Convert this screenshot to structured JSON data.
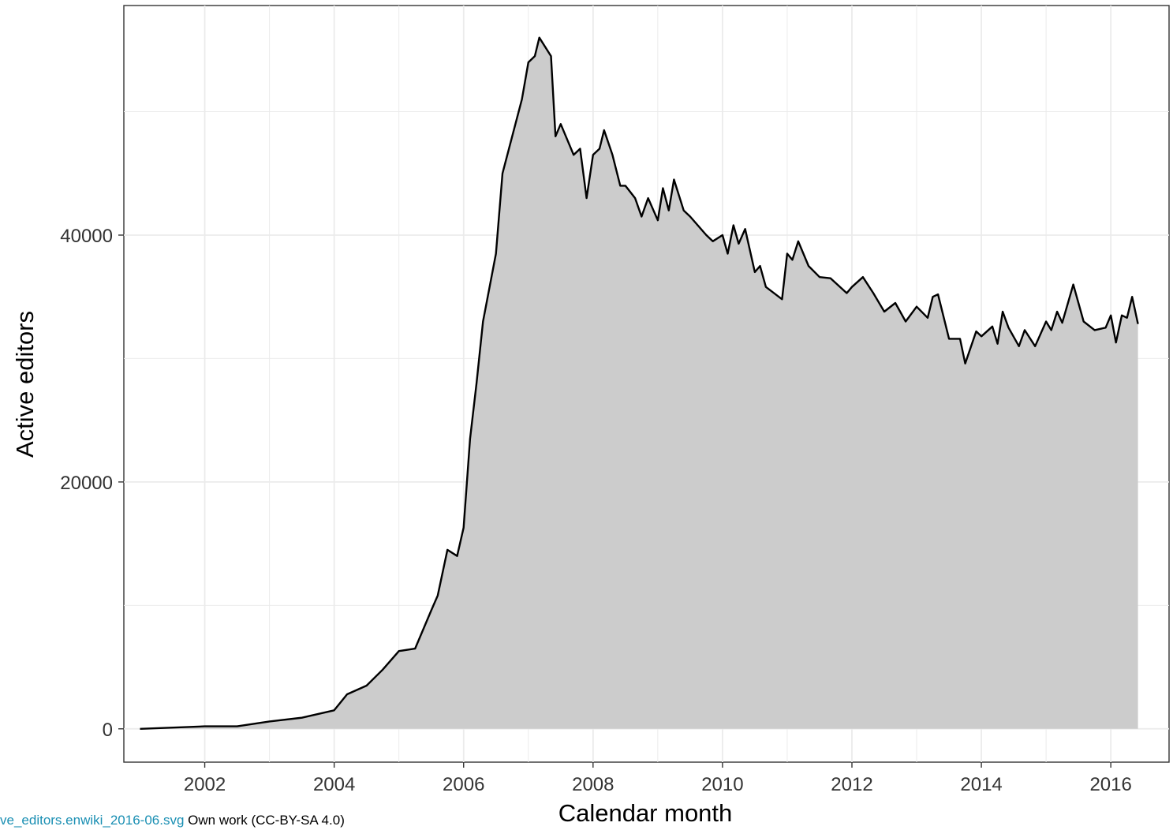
{
  "chart_data": {
    "type": "area",
    "xlabel": "Calendar month",
    "ylabel": "Active editors",
    "xlim": [
      2000.75,
      2016.9
    ],
    "ylim": [
      -2700,
      58600
    ],
    "x_ticks": [
      2002,
      2004,
      2006,
      2008,
      2010,
      2012,
      2014,
      2016
    ],
    "x_tick_labels": [
      "2002",
      "2004",
      "2006",
      "2008",
      "2010",
      "2012",
      "2014",
      "2016"
    ],
    "y_ticks": [
      0,
      20000,
      40000
    ],
    "y_tick_labels": [
      "0",
      "20000",
      "40000"
    ],
    "y_minor_ticks": [
      10000,
      30000,
      50000
    ],
    "grid": true,
    "legend": "none",
    "colors": {
      "fill": "#cccccc",
      "line": "#000000",
      "grid": "#ebebeb",
      "border": "#333333"
    },
    "series": [
      {
        "x": [
          2001.0,
          2002.0,
          2002.5,
          2003.0,
          2003.5,
          2004.0,
          2004.2,
          2004.5,
          2004.75,
          2005.0,
          2005.25,
          2005.5,
          2005.6,
          2005.75,
          2005.9,
          2006.0,
          2006.1,
          2006.2,
          2006.3,
          2006.5,
          2006.6,
          2006.75,
          2006.9,
          2007.0,
          2007.1,
          2007.17,
          2007.35,
          2007.42,
          2007.5,
          2007.7,
          2007.8,
          2007.9,
          2008.0,
          2008.1,
          2008.17,
          2008.3,
          2008.42,
          2008.5,
          2008.65,
          2008.75,
          2008.85,
          2009.0,
          2009.08,
          2009.17,
          2009.25,
          2009.4,
          2009.5,
          2009.75,
          2009.85,
          2010.0,
          2010.08,
          2010.17,
          2010.25,
          2010.35,
          2010.5,
          2010.58,
          2010.67,
          2010.92,
          2011.0,
          2011.08,
          2011.17,
          2011.33,
          2011.5,
          2011.67,
          2011.92,
          2012.0,
          2012.17,
          2012.33,
          2012.5,
          2012.67,
          2012.83,
          2013.0,
          2013.17,
          2013.25,
          2013.33,
          2013.5,
          2013.67,
          2013.75,
          2013.92,
          2014.0,
          2014.17,
          2014.25,
          2014.33,
          2014.42,
          2014.58,
          2014.67,
          2014.83,
          2015.0,
          2015.08,
          2015.17,
          2015.25,
          2015.42,
          2015.58,
          2015.75,
          2015.92,
          2016.0,
          2016.08,
          2016.17,
          2016.25,
          2016.33,
          2016.42
        ],
        "values": [
          0,
          200,
          200,
          600,
          900,
          1500,
          2800,
          3500,
          4800,
          6300,
          6500,
          9600,
          10800,
          14500,
          14000,
          16300,
          23500,
          28000,
          33000,
          38500,
          45000,
          48000,
          51000,
          54000,
          54500,
          56000,
          54500,
          48000,
          49000,
          46500,
          47000,
          43000,
          46500,
          47000,
          48500,
          46500,
          44000,
          44000,
          43000,
          41500,
          43000,
          41200,
          43800,
          42000,
          44500,
          42000,
          41500,
          40000,
          39500,
          40000,
          38500,
          40800,
          39300,
          40500,
          37000,
          37500,
          35800,
          34800,
          38500,
          38000,
          39500,
          37500,
          36600,
          36500,
          35300,
          35800,
          36600,
          35300,
          33800,
          34500,
          33000,
          34200,
          33300,
          35000,
          35200,
          31600,
          31600,
          29600,
          32200,
          31800,
          32600,
          31200,
          33800,
          32500,
          31000,
          32300,
          31000,
          33000,
          32300,
          33800,
          32900,
          36000,
          33000,
          32300,
          32500,
          33500,
          31300,
          33500,
          33300,
          35000,
          32800
        ]
      }
    ]
  },
  "credit": {
    "link_text": "ve_editors.enwiki_2016-06.svg",
    "rest_text": " Own work (CC-BY-SA 4.0)"
  }
}
